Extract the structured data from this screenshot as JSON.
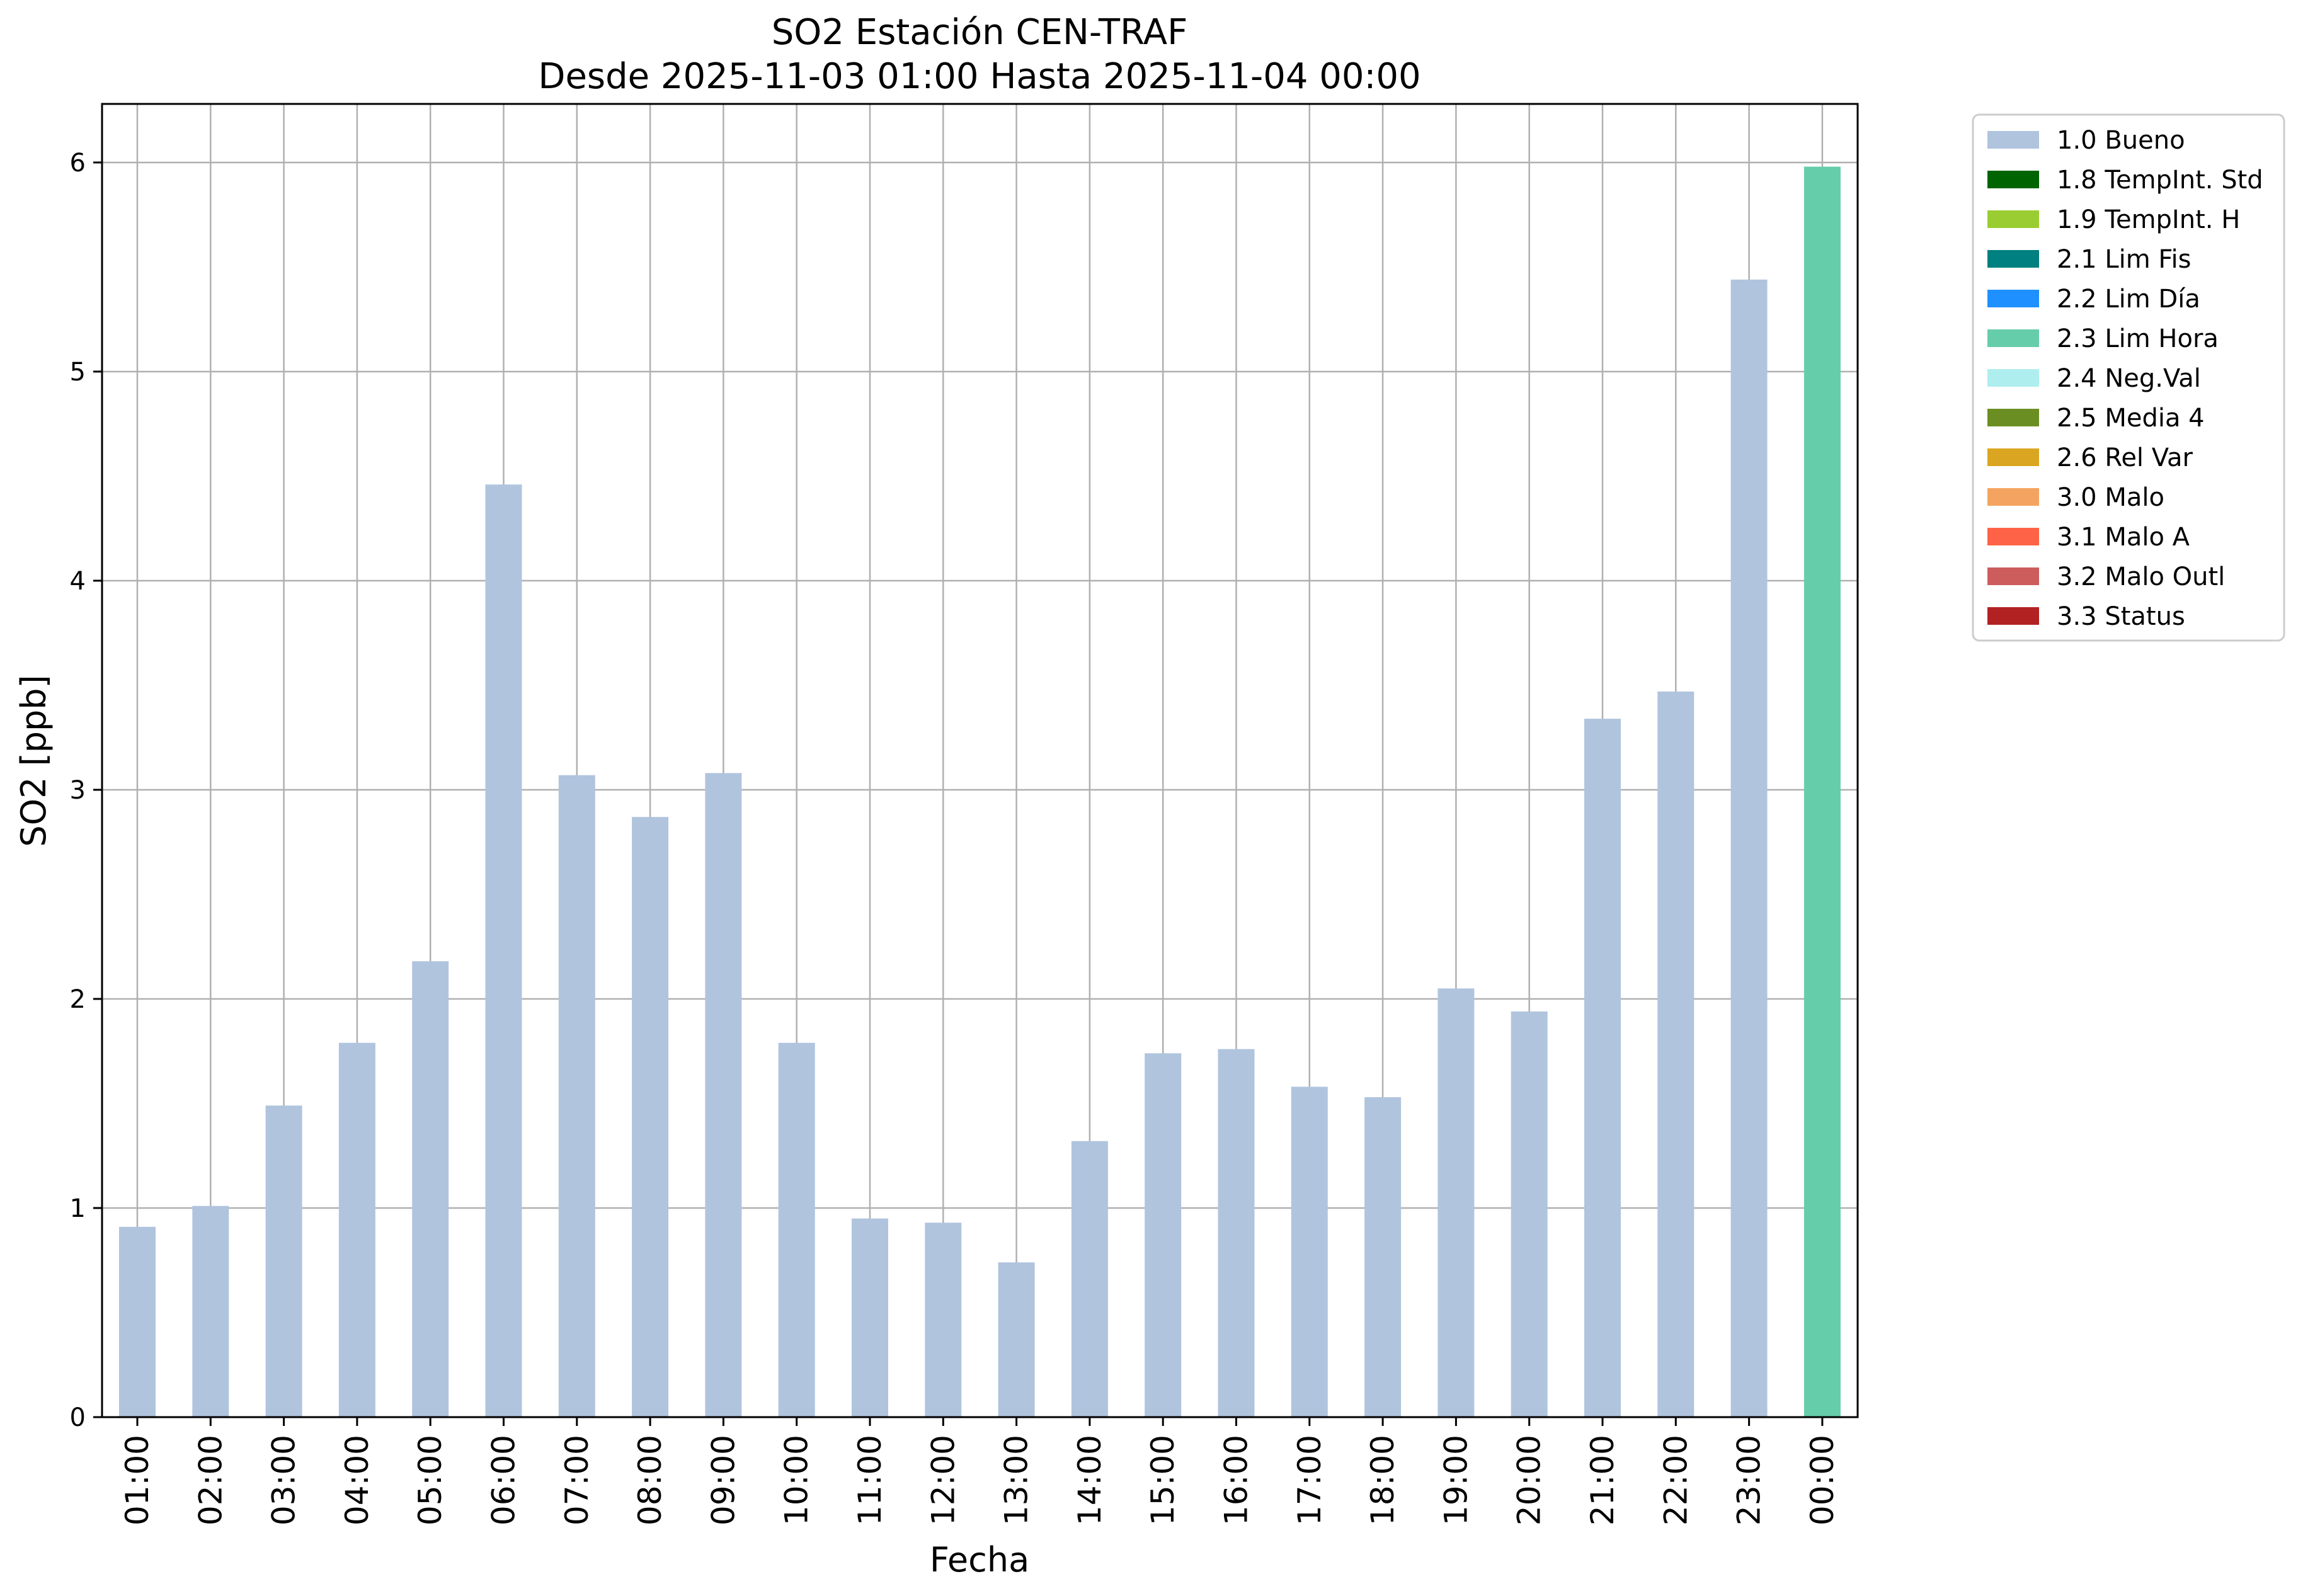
{
  "chart_data": {
    "type": "bar",
    "title": "SO2 Estación CEN-TRAF",
    "subtitle": "Desde 2025-11-03 01:00 Hasta 2025-11-04 00:00",
    "xlabel": "Fecha",
    "ylabel": "SO2 [ppb]",
    "ylim": [
      0,
      6.28
    ],
    "yticks": [
      0,
      1,
      2,
      3,
      4,
      5,
      6
    ],
    "grid": true,
    "legend_position": "outside-right-top",
    "categories": [
      "01:00",
      "02:00",
      "03:00",
      "04:00",
      "05:00",
      "06:00",
      "07:00",
      "08:00",
      "09:00",
      "10:00",
      "11:00",
      "12:00",
      "13:00",
      "14:00",
      "15:00",
      "16:00",
      "17:00",
      "18:00",
      "19:00",
      "20:00",
      "21:00",
      "22:00",
      "23:00",
      "00:00"
    ],
    "values": [
      0.91,
      1.01,
      1.49,
      1.79,
      2.18,
      4.46,
      3.07,
      2.87,
      3.08,
      1.79,
      0.95,
      0.93,
      0.74,
      1.32,
      1.74,
      1.76,
      1.58,
      1.53,
      2.05,
      1.94,
      3.34,
      3.47,
      5.44,
      5.98
    ],
    "flags": [
      "1.0 Bueno",
      "1.0 Bueno",
      "1.0 Bueno",
      "1.0 Bueno",
      "1.0 Bueno",
      "1.0 Bueno",
      "1.0 Bueno",
      "1.0 Bueno",
      "1.0 Bueno",
      "1.0 Bueno",
      "1.0 Bueno",
      "1.0 Bueno",
      "1.0 Bueno",
      "1.0 Bueno",
      "1.0 Bueno",
      "1.0 Bueno",
      "1.0 Bueno",
      "1.0 Bueno",
      "1.0 Bueno",
      "1.0 Bueno",
      "1.0 Bueno",
      "1.0 Bueno",
      "1.0 Bueno",
      "2.3 Lim Hora"
    ],
    "legend": [
      {
        "label": "1.0 Bueno",
        "color": "#b0c4de"
      },
      {
        "label": "1.8 TempInt. Std",
        "color": "#006400"
      },
      {
        "label": "1.9 TempInt. H",
        "color": "#9acd32"
      },
      {
        "label": "2.1 Lim Fis",
        "color": "#008080"
      },
      {
        "label": "2.2 Lim Día",
        "color": "#1e90ff"
      },
      {
        "label": "2.3 Lim Hora",
        "color": "#66cdaa"
      },
      {
        "label": "2.4 Neg.Val",
        "color": "#afeeee"
      },
      {
        "label": "2.5 Media 4",
        "color": "#6b8e23"
      },
      {
        "label": "2.6 Rel Var",
        "color": "#daa520"
      },
      {
        "label": "3.0 Malo",
        "color": "#f4a460"
      },
      {
        "label": "3.1 Malo A",
        "color": "#ff6347"
      },
      {
        "label": "3.2 Malo Outl",
        "color": "#cd5c5c"
      },
      {
        "label": "3.3 Status",
        "color": "#b22222"
      }
    ]
  }
}
